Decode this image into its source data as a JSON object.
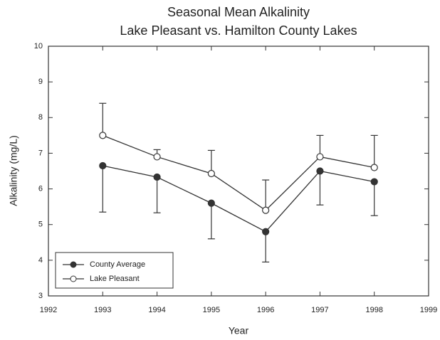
{
  "chart_data": {
    "type": "line",
    "title": "Seasonal Mean Alkalinity",
    "subtitle": "Lake Pleasant vs. Hamilton County Lakes",
    "x_label": "Year",
    "y_label": "Alkalinity (mg/L)",
    "x": [
      1993,
      1994,
      1995,
      1996,
      1997,
      1998
    ],
    "series": [
      {
        "name": "County Average",
        "color": "#333333",
        "marker": "filled",
        "values": [
          6.65,
          6.33,
          5.6,
          4.8,
          6.5,
          6.2
        ],
        "errors": [
          1.3,
          1.0,
          1.0,
          0.85,
          0.95,
          0.95
        ],
        "error_side": "lower"
      },
      {
        "name": "Lake Pleasant",
        "color": "#333333",
        "marker": "open",
        "values": [
          7.5,
          6.9,
          6.43,
          5.4,
          6.9,
          6.6
        ],
        "errors": [
          0.9,
          0.2,
          0.65,
          0.85,
          0.6,
          0.9
        ],
        "error_side": "upper"
      }
    ],
    "xlim": [
      1992,
      1999
    ],
    "xticks": [
      1992,
      1993,
      1994,
      1995,
      1996,
      1997,
      1998,
      1999
    ],
    "ylim": [
      3,
      10
    ],
    "yticks": [
      3,
      4,
      5,
      6,
      7,
      8,
      9,
      10
    ],
    "legend": "lower left",
    "grid": false
  }
}
